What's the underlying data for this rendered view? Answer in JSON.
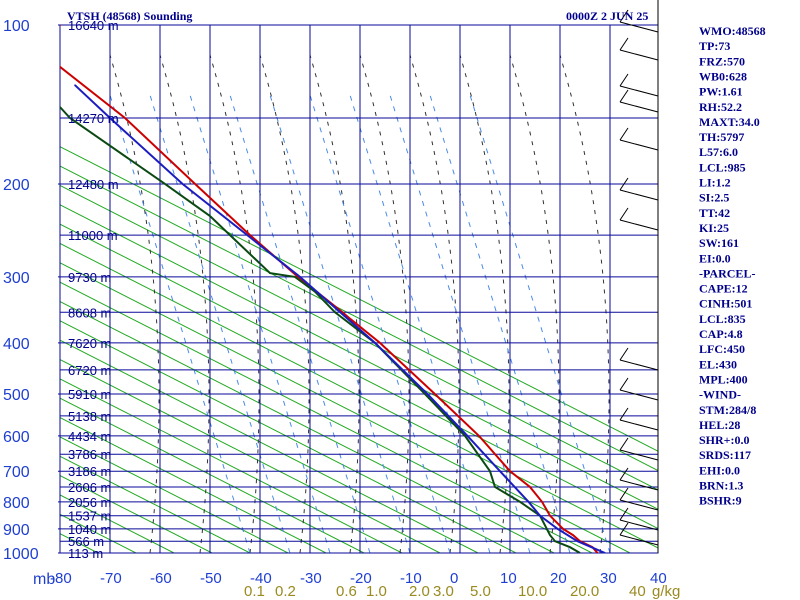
{
  "header": {
    "station_title": "VTSH (48568) Sounding",
    "valid_time": "0000Z  2 JUN 25"
  },
  "axes": {
    "pressure_unit": "mb",
    "mixing_ratio_unit": "g/kg"
  },
  "chart_data": {
    "type": "line",
    "title": "VTSH (48568) Sounding",
    "xlabel": "",
    "ylabel": "mb",
    "xlim": [
      -80,
      0
    ],
    "ylim": [
      1000,
      100
    ],
    "y_scale": "log-pressure (inverted)",
    "grid": true,
    "pressure_levels": [
      100,
      200,
      300,
      400,
      500,
      600,
      700,
      800,
      900,
      1000
    ],
    "temperature_ticks": [
      -80,
      -70,
      -60,
      -50,
      -40,
      -30,
      -20,
      -10,
      0,
      10,
      20,
      30,
      40
    ],
    "height_labels": [
      {
        "p": 100,
        "label": "16640 m"
      },
      {
        "p": 150,
        "label": "14270 m"
      },
      {
        "p": 200,
        "label": "12480 m"
      },
      {
        "p": 250,
        "label": "11000 m"
      },
      {
        "p": 300,
        "label": "9730 m"
      },
      {
        "p": 350,
        "label": "8608 m"
      },
      {
        "p": 400,
        "label": "7620 m"
      },
      {
        "p": 450,
        "label": "6720 m"
      },
      {
        "p": 500,
        "label": "5910 m"
      },
      {
        "p": 550,
        "label": "5138 m"
      },
      {
        "p": 600,
        "label": "4434 m"
      },
      {
        "p": 650,
        "label": "3786 m"
      },
      {
        "p": 700,
        "label": "3186 m"
      },
      {
        "p": 750,
        "label": "2606 m"
      },
      {
        "p": 800,
        "label": "2056 m"
      },
      {
        "p": 850,
        "label": "1537 m"
      },
      {
        "p": 900,
        "label": "1040 m"
      },
      {
        "p": 950,
        "label": "566 m"
      },
      {
        "p": 1000,
        "label": "113 m"
      }
    ],
    "mixing_ratio_labels": [
      "0.1",
      "0.2",
      "0.6",
      "1.0",
      "2.0",
      "3.0",
      "5.0",
      "10.0",
      "20.0",
      "40"
    ],
    "series": [
      {
        "name": "Temperature",
        "color": "#cc0000",
        "points": [
          {
            "p": 1000,
            "t": 27.5
          },
          {
            "p": 975,
            "t": 26.5
          },
          {
            "p": 950,
            "t": 24.0
          },
          {
            "p": 925,
            "t": 22.6
          },
          {
            "p": 900,
            "t": 20.6
          },
          {
            "p": 850,
            "t": 18.0
          },
          {
            "p": 800,
            "t": 16.4
          },
          {
            "p": 750,
            "t": 14.0
          },
          {
            "p": 700,
            "t": 10.0
          },
          {
            "p": 600,
            "t": 3.8
          },
          {
            "p": 500,
            "t": -5.0
          },
          {
            "p": 400,
            "t": -16.0
          },
          {
            "p": 360,
            "t": -22.0
          },
          {
            "p": 350,
            "t": -23.5
          },
          {
            "p": 300,
            "t": -32.4
          },
          {
            "p": 250,
            "t": -42.0
          },
          {
            "p": 200,
            "t": -53.0
          },
          {
            "p": 150,
            "t": -67.0
          },
          {
            "p": 120,
            "t": -80.0
          },
          {
            "p": 115,
            "t": -84.0
          },
          {
            "p": 100,
            "t": -80.0
          }
        ]
      },
      {
        "name": "Dewpoint",
        "color": "#0b4a12",
        "points": [
          {
            "p": 1000,
            "t": 24.0
          },
          {
            "p": 975,
            "t": 22.0
          },
          {
            "p": 950,
            "t": 19.0
          },
          {
            "p": 925,
            "t": 18.0
          },
          {
            "p": 850,
            "t": 16.0
          },
          {
            "p": 800,
            "t": 12.0
          },
          {
            "p": 750,
            "t": 7.0
          },
          {
            "p": 700,
            "t": 6.0
          },
          {
            "p": 600,
            "t": 1.0
          },
          {
            "p": 500,
            "t": -7.0
          },
          {
            "p": 400,
            "t": -17.0
          },
          {
            "p": 350,
            "t": -25.0
          },
          {
            "p": 320,
            "t": -29.0
          },
          {
            "p": 300,
            "t": -33.0
          },
          {
            "p": 295,
            "t": -38.0
          },
          {
            "p": 250,
            "t": -46.0
          },
          {
            "p": 230,
            "t": -50.0
          },
          {
            "p": 200,
            "t": -59.0
          },
          {
            "p": 150,
            "t": -78.0
          },
          {
            "p": 130,
            "t": -84.0
          },
          {
            "p": 100,
            "t": -86.0
          }
        ]
      },
      {
        "name": "Parcel",
        "color": "#1c1cbf",
        "points": [
          {
            "p": 1000,
            "t": 29.0
          },
          {
            "p": 950,
            "t": 23.5
          },
          {
            "p": 900,
            "t": 19.5
          },
          {
            "p": 850,
            "t": 16.0
          },
          {
            "p": 800,
            "t": 13.7
          },
          {
            "p": 700,
            "t": 8.0
          },
          {
            "p": 600,
            "t": 1.5
          },
          {
            "p": 500,
            "t": -6.5
          },
          {
            "p": 400,
            "t": -17.0
          },
          {
            "p": 300,
            "t": -32.0
          },
          {
            "p": 200,
            "t": -55.5
          },
          {
            "p": 150,
            "t": -70.0
          },
          {
            "p": 130,
            "t": -77.0
          }
        ]
      }
    ]
  },
  "wind_barbs_label": "",
  "indices": [
    "WMO:48568",
    "TP:73",
    "FRZ:570",
    "WB0:628",
    "PW:1.61",
    "RH:52.2",
    "MAXT:34.0",
    "TH:5797",
    "L57:6.0",
    "LCL:985",
    "LI:1.2",
    "SI:2.5",
    "TT:42",
    "KI:25",
    "SW:161",
    "EI:0.0",
    "-PARCEL-",
    "CAPE:12",
    "CINH:501",
    "LCL:835",
    "CAP:4.8",
    "LFC:450",
    "EL:430",
    "MPL:400",
    "-WIND-",
    "STM:284/8",
    "HEL:28",
    "SHR+:0.0",
    "SRDS:117",
    "EHI:0.0",
    "BRN:1.3",
    "BSHR:9"
  ],
  "colors": {
    "grid": "#0a0a9a",
    "dry_adiabat": "#22aa22",
    "moist_adiabat": "#333333",
    "mixing_ratio": "#4a8ae8",
    "temperature": "#cc0000",
    "dewpoint": "#0b4a12",
    "parcel": "#1c1cbf"
  }
}
